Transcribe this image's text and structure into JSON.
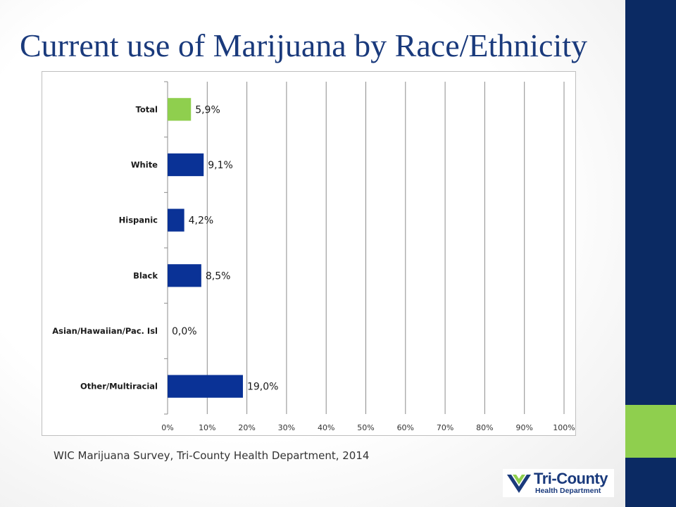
{
  "slide": {
    "title": "Current use of Marijuana by Race/Ethnicity",
    "source": "WIC Marijuana Survey, Tri-County Health Department, 2014"
  },
  "logo": {
    "name": "Tri-County",
    "subtitle": "Health Department"
  },
  "colors": {
    "navy": "#0b2a63",
    "green": "#8fcf4e",
    "title": "#1a3a7c",
    "bar_blue": "#0a3296",
    "bar_green": "#8fcf4e"
  },
  "chart_data": {
    "type": "bar",
    "orientation": "horizontal",
    "categories": [
      "Total",
      "White",
      "Hispanic",
      "Black",
      "Asian/Hawaiian/Pac. Isl",
      "Other/Multiracial"
    ],
    "values": [
      5.9,
      9.1,
      4.2,
      8.5,
      0.0,
      19.0
    ],
    "value_labels": [
      "5,9%",
      "9,1%",
      "4,2%",
      "8,5%",
      "0,0%",
      "19,0%"
    ],
    "bar_colors": [
      "#8fcf4e",
      "#0a3296",
      "#0a3296",
      "#0a3296",
      "#0a3296",
      "#0a3296"
    ],
    "xlim": [
      0,
      100
    ],
    "xticks": [
      "0%",
      "10%",
      "20%",
      "30%",
      "40%",
      "50%",
      "60%",
      "70%",
      "80%",
      "90%",
      "100%"
    ],
    "grid": "vertical",
    "legend": "none",
    "title": "",
    "xlabel": "",
    "ylabel": ""
  }
}
